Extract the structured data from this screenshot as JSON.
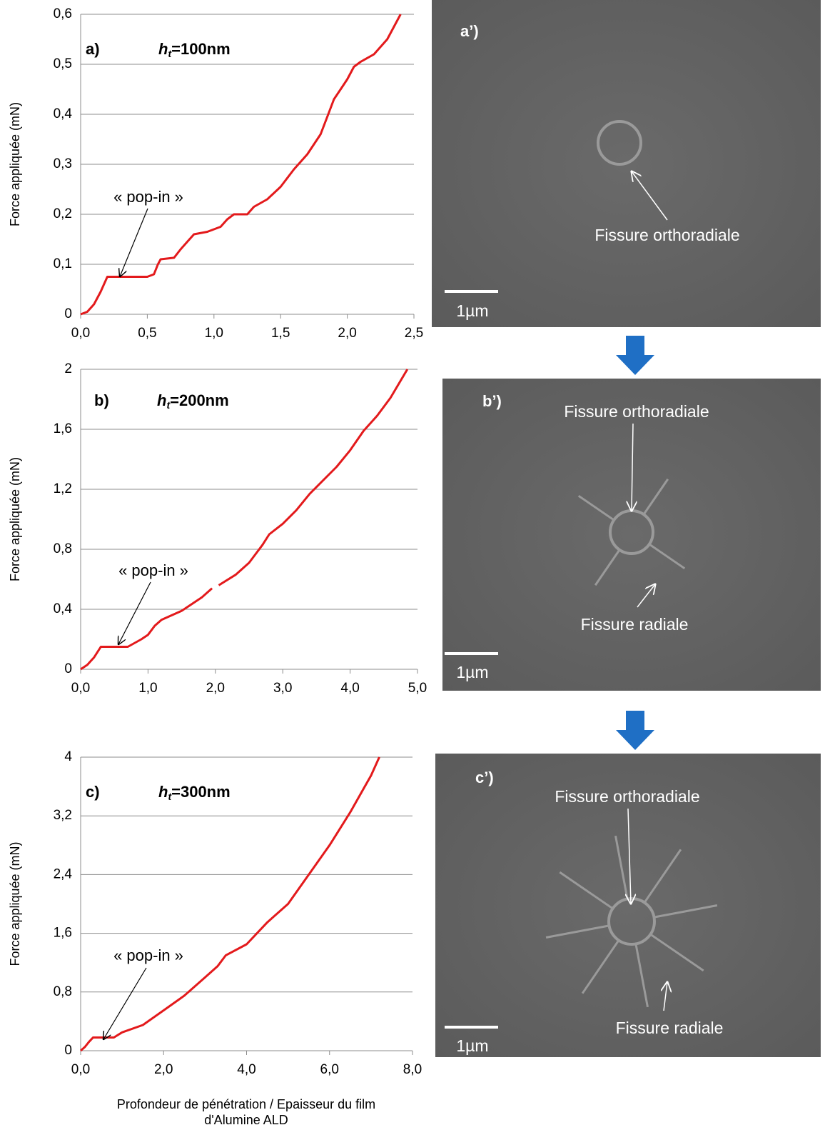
{
  "chart_data": [
    {
      "type": "line",
      "panel_label": "a)",
      "condition": {
        "symbol": "h",
        "subscript": "t",
        "value": "=100nm"
      },
      "ylabel": "Force appliquée (mN)",
      "annotation": "« pop-in »",
      "series": [
        {
          "color": "#e31a1c",
          "x": [
            0,
            0.05,
            0.1,
            0.15,
            0.2,
            0.5,
            0.55,
            0.58,
            0.6,
            0.7,
            0.75,
            0.8,
            0.85,
            0.95,
            1.05,
            1.1,
            1.15,
            1.25,
            1.3,
            1.4,
            1.5,
            1.6,
            1.7,
            1.8,
            1.85,
            1.9,
            1.95,
            2.0,
            2.05,
            2.1,
            2.2,
            2.3,
            2.4
          ],
          "values": [
            0,
            0.005,
            0.02,
            0.045,
            0.075,
            0.075,
            0.08,
            0.1,
            0.11,
            0.113,
            0.13,
            0.145,
            0.16,
            0.165,
            0.175,
            0.19,
            0.2,
            0.2,
            0.215,
            0.23,
            0.255,
            0.29,
            0.32,
            0.36,
            0.395,
            0.43,
            0.45,
            0.47,
            0.495,
            0.505,
            0.52,
            0.55,
            0.6
          ]
        }
      ],
      "xlim": [
        0,
        2.5
      ],
      "xticks": [
        {
          "value": 0,
          "label": "0,0"
        },
        {
          "value": 0.5,
          "label": "0,5"
        },
        {
          "value": 1,
          "label": "1,0"
        },
        {
          "value": 1.5,
          "label": "1,5"
        },
        {
          "value": 2,
          "label": "2,0"
        },
        {
          "value": 2.5,
          "label": "2,5"
        }
      ],
      "ylim": [
        0,
        0.6
      ],
      "yticks": [
        0,
        {
          "value": 0.1,
          "label": "0,1"
        },
        {
          "value": 0.2,
          "label": "0,2"
        },
        {
          "value": 0.3,
          "label": "0,3"
        },
        {
          "value": 0.4,
          "label": "0,4"
        },
        {
          "value": 0.5,
          "label": "0,5"
        },
        {
          "value": 0.6,
          "label": "0,6"
        }
      ],
      "grid": true
    },
    {
      "type": "line",
      "panel_label": "b)",
      "condition": {
        "symbol": "h",
        "subscript": "t",
        "value": "=200nm"
      },
      "ylabel": "Force appliquée (mN)",
      "annotation": "« pop-in »",
      "series": [
        {
          "color": "#e31a1c",
          "x": [
            0,
            0.1,
            0.2,
            0.3,
            0.7,
            0.9,
            1.0,
            1.1,
            1.2,
            1.5,
            1.8,
            1.95,
            2.0,
            2.05,
            2.3,
            2.5,
            2.7,
            2.8,
            3.0,
            3.2,
            3.4,
            3.6,
            3.8,
            4.0,
            4.2,
            4.4,
            4.6,
            4.85
          ],
          "values": [
            0,
            0.03,
            0.08,
            0.15,
            0.15,
            0.2,
            0.23,
            0.29,
            0.33,
            0.39,
            0.48,
            0.54,
            null,
            0.56,
            0.63,
            0.71,
            0.83,
            0.9,
            0.97,
            1.06,
            1.17,
            1.26,
            1.35,
            1.46,
            1.59,
            1.69,
            1.81,
            2
          ]
        }
      ],
      "xlim": [
        0,
        5
      ],
      "xticks": [
        {
          "value": 0,
          "label": "0,0"
        },
        {
          "value": 1,
          "label": "1,0"
        },
        {
          "value": 2,
          "label": "2,0"
        },
        {
          "value": 3,
          "label": "3,0"
        },
        {
          "value": 4,
          "label": "4,0"
        },
        {
          "value": 5,
          "label": "5,0"
        }
      ],
      "ylim": [
        0,
        2
      ],
      "yticks": [
        0,
        {
          "value": 0.4,
          "label": "0,4"
        },
        {
          "value": 0.8,
          "label": "0,8"
        },
        {
          "value": 1.2,
          "label": "1,2"
        },
        {
          "value": 1.6,
          "label": "1,6"
        },
        2
      ],
      "grid": true
    },
    {
      "type": "line",
      "panel_label": "c)",
      "condition": {
        "symbol": "h",
        "subscript": "t",
        "value": "=300nm"
      },
      "ylabel": "Force appliquée (mN)",
      "annotation": "« pop-in »",
      "xlabel": [
        "Profondeur de pénétration / Epaisseur du film",
        "d'Alumine ALD"
      ],
      "series": [
        {
          "color": "#e31a1c",
          "x": [
            0,
            0.1,
            0.2,
            0.3,
            0.8,
            1.0,
            1.5,
            2.0,
            2.5,
            3.0,
            3.3,
            3.5,
            4.0,
            4.5,
            5.0,
            5.5,
            6.0,
            6.5,
            7.0,
            7.2
          ],
          "values": [
            0,
            0.05,
            0.12,
            0.18,
            0.18,
            0.25,
            0.35,
            0.55,
            0.75,
            1.0,
            1.15,
            1.3,
            1.45,
            1.75,
            2.0,
            2.4,
            2.8,
            3.25,
            3.75,
            4
          ]
        }
      ],
      "xlim": [
        0,
        8
      ],
      "xticks": [
        {
          "value": 0,
          "label": "0,0"
        },
        {
          "value": 2,
          "label": "2,0"
        },
        {
          "value": 4,
          "label": "4,0"
        },
        {
          "value": 6,
          "label": "6,0"
        },
        {
          "value": 8,
          "label": "8,0"
        }
      ],
      "ylim": [
        0,
        4
      ],
      "yticks": [
        0,
        {
          "value": 0.8,
          "label": "0,8"
        },
        {
          "value": 1.6,
          "label": "1,6"
        },
        {
          "value": 2.4,
          "label": "2,4"
        },
        {
          "value": 3.2,
          "label": "3,2"
        },
        4
      ],
      "grid": true
    }
  ],
  "images": [
    {
      "label": "a’)",
      "annotations": [
        "Fissure orthoradiale"
      ],
      "scale_bar": "1µm"
    },
    {
      "label": "b’)",
      "annotations": [
        "Fissure orthoradiale",
        "Fissure radiale"
      ],
      "scale_bar": "1µm"
    },
    {
      "label": "c’)",
      "annotations": [
        "Fissure orthoradiale",
        "Fissure radiale"
      ],
      "scale_bar": "1µm"
    }
  ]
}
